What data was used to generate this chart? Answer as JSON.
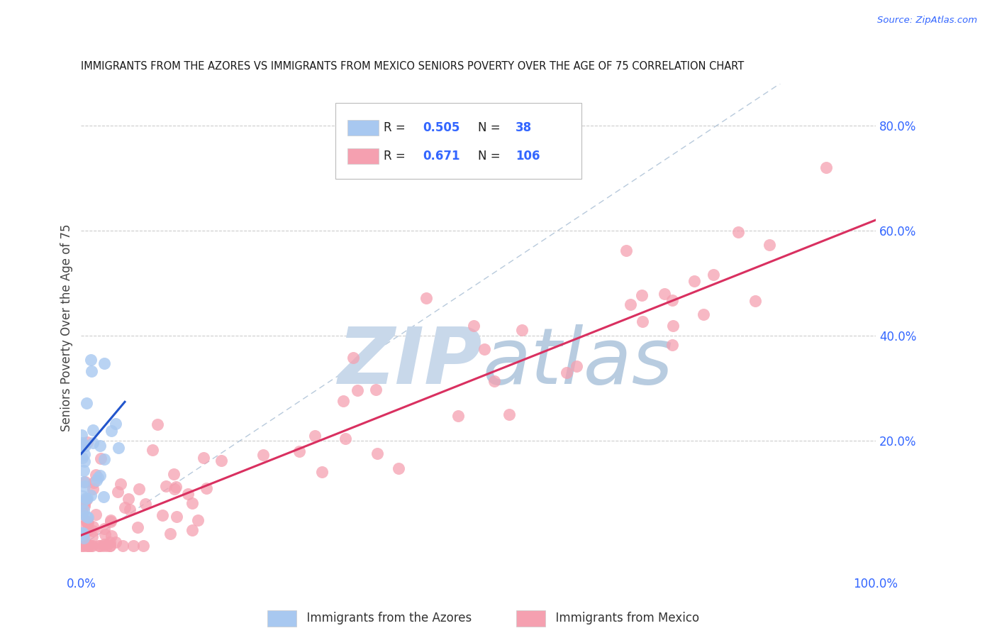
{
  "title": "IMMIGRANTS FROM THE AZORES VS IMMIGRANTS FROM MEXICO SENIORS POVERTY OVER THE AGE OF 75 CORRELATION CHART",
  "source": "Source: ZipAtlas.com",
  "ylabel": "Seniors Poverty Over the Age of 75",
  "y_ticks": [
    0.0,
    0.2,
    0.4,
    0.6,
    0.8
  ],
  "y_tick_labels": [
    "",
    "20.0%",
    "40.0%",
    "60.0%",
    "80.0%"
  ],
  "xlim": [
    0.0,
    1.0
  ],
  "ylim": [
    -0.05,
    0.88
  ],
  "azores_R": 0.505,
  "azores_N": 38,
  "mexico_R": 0.671,
  "mexico_N": 106,
  "azores_color": "#a8c8f0",
  "mexico_color": "#f5a0b0",
  "azores_line_color": "#2255cc",
  "mexico_line_color": "#d93060",
  "dashed_line_color": "#b0c4d8",
  "watermark_zip_color": "#c8d8ea",
  "watermark_atlas_color": "#b8cce0",
  "background_color": "#ffffff",
  "grid_color": "#cccccc",
  "title_color": "#1a1a1a",
  "label_color": "#3366ff",
  "tick_color": "#3366ff",
  "mexico_line_intercept": 0.02,
  "mexico_line_slope": 0.6,
  "azores_line_intercept": 0.175,
  "azores_line_slope": 1.8,
  "azores_line_xmax": 0.055
}
